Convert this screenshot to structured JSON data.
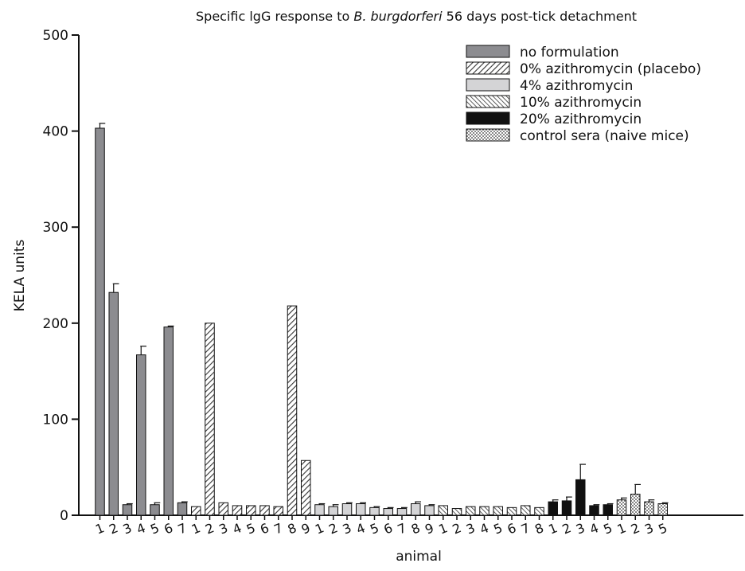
{
  "chart_data": {
    "type": "bar",
    "title_parts": [
      "Specific lgG response to ",
      "B. burgdorferi",
      " 56 days post-tick detachment"
    ],
    "xlabel": "animal",
    "ylabel": "KELA units",
    "ylim": [
      0,
      500
    ],
    "yticks": [
      0,
      100,
      200,
      300,
      400,
      500
    ],
    "legend_position": "top-right",
    "grid": false,
    "series": [
      {
        "name": "no formulation",
        "pattern": "solid-gray",
        "color": "#8c8c90",
        "categories": [
          "1",
          "2",
          "3",
          "4",
          "5",
          "6",
          "7"
        ],
        "values": [
          403,
          232,
          11,
          167,
          11,
          196,
          13
        ],
        "errors": [
          5,
          9,
          1,
          9,
          2,
          1,
          1
        ]
      },
      {
        "name": "0% azithromycin (placebo)",
        "pattern": "hatch-forward",
        "color": "#333333",
        "categories": [
          "1",
          "2",
          "3",
          "4",
          "5",
          "6",
          "7",
          "8",
          "9"
        ],
        "values": [
          9,
          200,
          13,
          10,
          10,
          10,
          9,
          218,
          57
        ],
        "errors": [
          0,
          0,
          0,
          0,
          0,
          0,
          0,
          0,
          0
        ]
      },
      {
        "name": "4% azithromycin",
        "pattern": "solid-light",
        "color": "#d4d4d6",
        "categories": [
          "1",
          "2",
          "3",
          "4",
          "5",
          "6",
          "7",
          "8",
          "9"
        ],
        "values": [
          11,
          9,
          12,
          12,
          8,
          7,
          7,
          12,
          10
        ],
        "errors": [
          1,
          2,
          1,
          1,
          1,
          1,
          1,
          2,
          1
        ]
      },
      {
        "name": "10% azithromycin",
        "pattern": "hatch-back",
        "color": "#333333",
        "categories": [
          "1",
          "2",
          "3",
          "4",
          "5",
          "6",
          "7",
          "8"
        ],
        "values": [
          10,
          7,
          9,
          9,
          9,
          8,
          10,
          8
        ],
        "errors": [
          0,
          0,
          0,
          0,
          0,
          0,
          0,
          0
        ]
      },
      {
        "name": "20% azithromycin",
        "pattern": "solid-black",
        "color": "#111111",
        "categories": [
          "1",
          "2",
          "3",
          "4",
          "5"
        ],
        "values": [
          14,
          15,
          37,
          10,
          11
        ],
        "errors": [
          2,
          4,
          16,
          1,
          1
        ]
      },
      {
        "name": "control sera (naive mice)",
        "pattern": "dots",
        "color": "#e6e6e6",
        "categories": [
          "1",
          "2",
          "3",
          "5"
        ],
        "values": [
          16,
          22,
          14,
          12
        ],
        "errors": [
          2,
          10,
          2,
          1
        ]
      }
    ]
  }
}
